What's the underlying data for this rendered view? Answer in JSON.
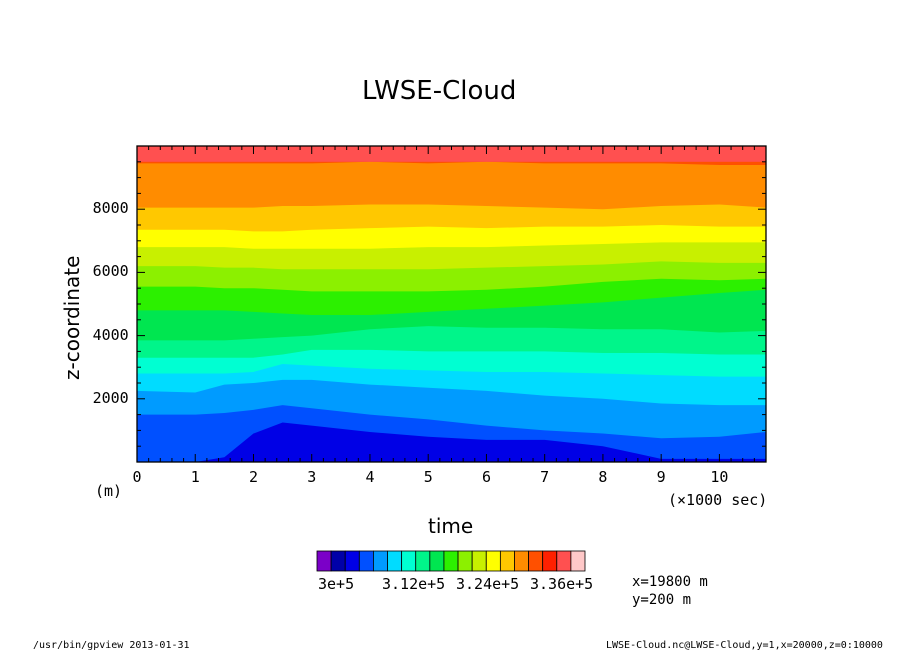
{
  "chart_data": {
    "type": "heatmap",
    "title": "LWSE-Cloud",
    "xlabel": "time",
    "ylabel": "z-coordinate",
    "x_unit_note": "(×1000 sec)",
    "y_unit_note": "(m)",
    "xlim": [
      0,
      10.8
    ],
    "ylim": [
      0,
      10000
    ],
    "x_ticks": [
      "0",
      "1",
      "2",
      "3",
      "4",
      "5",
      "6",
      "7",
      "8",
      "9",
      "10"
    ],
    "y_ticks": [
      "2000",
      "4000",
      "6000",
      "8000"
    ],
    "color_levels": [
      "#7b00c8",
      "#0000a8",
      "#0000e6",
      "#0050ff",
      "#009bff",
      "#00dcff",
      "#00ffd2",
      "#00f58a",
      "#00e650",
      "#2cf000",
      "#8cf000",
      "#c8f000",
      "#ffff00",
      "#ffc800",
      "#ff8c00",
      "#ff5000",
      "#ff2000",
      "#ff5050",
      "#ffc8c8"
    ],
    "colorbar_labels": [
      "3e+5",
      "3.12e+5",
      "3.24e+5",
      "3.36e+5"
    ],
    "colorbar_values": [
      300000,
      312000,
      324000,
      336000
    ],
    "contour_boundaries_m": {
      "x": [
        0,
        1,
        1.5,
        2,
        2.5,
        3,
        4,
        5,
        6,
        7,
        8,
        9,
        10,
        10.8
      ],
      "levels": [
        {
          "color_index": 2,
          "top": [
            0,
            0,
            150,
            900,
            1250,
            1150,
            950,
            800,
            700,
            700,
            500,
            100,
            100,
            100
          ]
        },
        {
          "color_index": 3,
          "top": [
            1500,
            1500,
            1550,
            1650,
            1800,
            1700,
            1500,
            1350,
            1150,
            1000,
            900,
            750,
            800,
            950
          ]
        },
        {
          "color_index": 4,
          "top": [
            2250,
            2200,
            2450,
            2500,
            2600,
            2600,
            2450,
            2350,
            2250,
            2100,
            2000,
            1850,
            1800,
            1800
          ]
        },
        {
          "color_index": 5,
          "top": [
            2800,
            2800,
            2800,
            2850,
            3100,
            3050,
            2950,
            2900,
            2850,
            2850,
            2800,
            2750,
            2700,
            2700
          ]
        },
        {
          "color_index": 6,
          "top": [
            3300,
            3300,
            3300,
            3300,
            3400,
            3550,
            3550,
            3500,
            3500,
            3500,
            3450,
            3450,
            3400,
            3400
          ]
        },
        {
          "color_index": 7,
          "top": [
            3850,
            3850,
            3850,
            3900,
            3950,
            4000,
            4200,
            4300,
            4250,
            4250,
            4200,
            4200,
            4100,
            4150
          ]
        },
        {
          "color_index": 8,
          "top": [
            4800,
            4800,
            4800,
            4750,
            4700,
            4650,
            4650,
            4750,
            4850,
            4950,
            5050,
            5200,
            5350,
            5450
          ]
        },
        {
          "color_index": 9,
          "top": [
            5550,
            5550,
            5500,
            5500,
            5450,
            5400,
            5400,
            5400,
            5450,
            5550,
            5700,
            5800,
            5750,
            5800
          ]
        },
        {
          "color_index": 10,
          "top": [
            6200,
            6200,
            6150,
            6150,
            6100,
            6100,
            6100,
            6100,
            6150,
            6200,
            6250,
            6350,
            6300,
            6300
          ]
        },
        {
          "color_index": 11,
          "top": [
            6800,
            6800,
            6800,
            6750,
            6750,
            6750,
            6750,
            6800,
            6800,
            6850,
            6900,
            6950,
            6950,
            6950
          ]
        },
        {
          "color_index": 12,
          "top": [
            7350,
            7350,
            7350,
            7300,
            7300,
            7350,
            7400,
            7450,
            7400,
            7450,
            7450,
            7500,
            7450,
            7450
          ]
        },
        {
          "color_index": 13,
          "top": [
            8050,
            8050,
            8050,
            8050,
            8100,
            8100,
            8150,
            8150,
            8100,
            8050,
            8000,
            8100,
            8150,
            8050
          ]
        },
        {
          "color_index": 14,
          "top": [
            9450,
            9450,
            9450,
            9450,
            9450,
            9450,
            9500,
            9450,
            9500,
            9450,
            9450,
            9450,
            9400,
            9400
          ]
        },
        {
          "color_index": 15,
          "top": [
            10000,
            10000,
            10000,
            10000,
            10000,
            10000,
            10000,
            10000,
            10000,
            10000,
            10000,
            10000,
            10000,
            10000
          ]
        }
      ]
    }
  },
  "info": {
    "line1": "x=19800 m",
    "line2": "y=200 m"
  },
  "footer": {
    "left": "/usr/bin/gpview  2013-01-31",
    "right": "LWSE-Cloud.nc@LWSE-Cloud,y=1,x=20000,z=0:10000"
  }
}
